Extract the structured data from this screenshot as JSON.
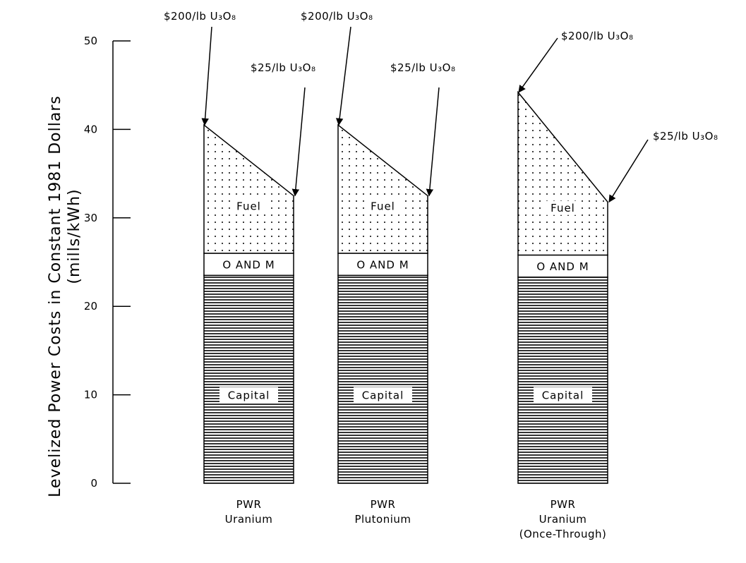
{
  "chart_data": {
    "type": "bar",
    "stacked": true,
    "ylabel": "Levelized Power Costs in Constant 1981 Dollars",
    "ylabel_units": "(mills/kWh)",
    "xlabel": "",
    "title": "",
    "ylim": [
      0,
      50
    ],
    "yticks": [
      0,
      10,
      20,
      30,
      40,
      50
    ],
    "grid": false,
    "categories": [
      {
        "line1": "PWR",
        "line2": "Uranium",
        "line3": ""
      },
      {
        "line1": "PWR",
        "line2": "Plutonium",
        "line3": ""
      },
      {
        "line1": "PWR",
        "line2": "Uranium",
        "line3": "(Once-Through)"
      }
    ],
    "series": [
      {
        "name": "Capital",
        "values": [
          23.5,
          23.5,
          23.3
        ]
      },
      {
        "name": "O AND M",
        "values": [
          2.5,
          2.5,
          2.5
        ]
      },
      {
        "name": "Fuel",
        "values_at_25": [
          6.5,
          6.5,
          6.0
        ],
        "values_at_200": [
          14.5,
          14.5,
          18.4
        ]
      }
    ],
    "totals": {
      "at_25": [
        32.5,
        32.5,
        31.8
      ],
      "at_200": [
        40.5,
        40.5,
        44.2
      ]
    },
    "annotations": {
      "high_price": "$200/lb U₃O₈",
      "low_price": "$25/lb U₃O₈"
    },
    "segment_labels": {
      "fuel": "Fuel",
      "om": "O AND M",
      "capital": "Capital"
    },
    "colors": {
      "ink": "#000000",
      "background": "#ffffff"
    }
  }
}
